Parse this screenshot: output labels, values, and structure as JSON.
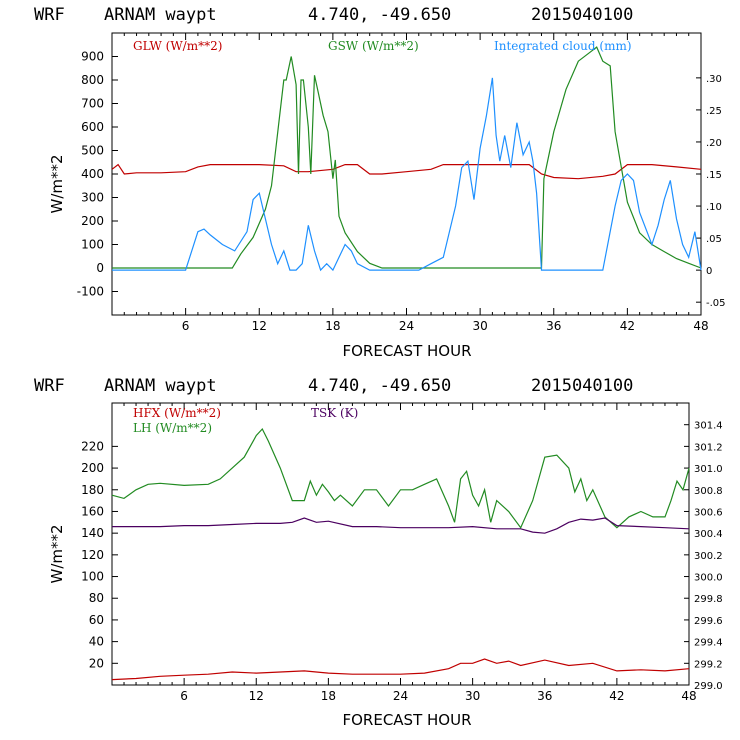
{
  "colors": {
    "glw": "#c00000",
    "gsw": "#228b22",
    "cloud": "#1e90ff",
    "hfx": "#c00000",
    "lh": "#228b22",
    "tsk": "#4b0060"
  },
  "chart_data": [
    {
      "type": "line",
      "header": {
        "model": "WRF",
        "station": "ARNAM waypt",
        "coords": "4.740, -49.650",
        "date": "2015040100"
      },
      "xlabel": "FORECAST HOUR",
      "ylabel": "W/m**2",
      "xlim": [
        0,
        48
      ],
      "ylim": [
        -200,
        1000
      ],
      "x_ticks": [
        "6",
        "12",
        "18",
        "24",
        "30",
        "36",
        "42",
        "48"
      ],
      "y_ticks": [
        "-100",
        "0",
        "100",
        "200",
        "300",
        "400",
        "500",
        "600",
        "700",
        "800",
        "900"
      ],
      "y2lim": [
        -0.07,
        0.37
      ],
      "y2_ticks": [
        "-.05",
        "0",
        ".05",
        ".10",
        ".15",
        ".20",
        ".25",
        ".30"
      ],
      "legend": [
        "GLW (W/m**2)",
        "GSW (W/m**2)",
        "Integrated cloud (mm)"
      ],
      "series": [
        {
          "name": "GLW (W/m**2)",
          "axis": "left",
          "x": [
            0,
            0.5,
            1,
            2,
            4,
            6,
            7,
            8,
            9,
            10,
            12,
            14,
            15,
            16,
            18,
            19,
            20,
            21,
            22,
            24,
            26,
            27,
            28,
            30,
            32,
            34,
            35,
            36,
            38,
            40,
            41,
            42,
            44,
            46,
            48
          ],
          "y": [
            420,
            440,
            400,
            405,
            405,
            410,
            430,
            440,
            440,
            440,
            440,
            435,
            410,
            410,
            420,
            440,
            440,
            400,
            400,
            410,
            420,
            440,
            440,
            440,
            440,
            440,
            400,
            385,
            380,
            390,
            400,
            440,
            440,
            430,
            420
          ]
        },
        {
          "name": "GSW (W/m**2)",
          "axis": "left",
          "x": [
            0,
            9.8,
            10.5,
            11.5,
            12.5,
            13,
            14,
            14.2,
            14.6,
            15,
            15.2,
            15.4,
            15.6,
            16,
            16.2,
            16.5,
            16.8,
            17.2,
            17.6,
            18,
            18.2,
            18.5,
            19,
            20,
            21,
            22,
            34,
            35,
            35.2,
            36,
            37,
            38,
            39,
            39.5,
            40,
            40.6,
            41,
            42,
            43,
            44,
            45,
            46,
            47,
            48
          ],
          "y": [
            0,
            0,
            60,
            130,
            250,
            350,
            800,
            800,
            900,
            780,
            400,
            800,
            800,
            600,
            400,
            820,
            750,
            650,
            580,
            380,
            460,
            220,
            150,
            70,
            20,
            0,
            0,
            0,
            380,
            580,
            760,
            880,
            920,
            940,
            880,
            860,
            580,
            280,
            150,
            100,
            70,
            40,
            20,
            0
          ]
        },
        {
          "name": "Integrated cloud (mm)",
          "axis": "right",
          "x": [
            0,
            6,
            7,
            7.5,
            8,
            9,
            10,
            11,
            11.5,
            12,
            12.5,
            13,
            13.5,
            14,
            14.5,
            15,
            15.5,
            16,
            16.5,
            17,
            17.5,
            18,
            18.5,
            19,
            19.5,
            20,
            21,
            25,
            26,
            27,
            28,
            28.5,
            29,
            29.5,
            30,
            30.5,
            31,
            31.3,
            31.6,
            32,
            32.5,
            33,
            33.5,
            34,
            34.3,
            34.6,
            35,
            40,
            41,
            41.5,
            42,
            42.5,
            43,
            44,
            44.5,
            45,
            45.5,
            46,
            46.5,
            47,
            47.5,
            48
          ],
          "y": [
            0,
            0,
            0.06,
            0.064,
            0.055,
            0.04,
            0.03,
            0.06,
            0.11,
            0.12,
            0.08,
            0.04,
            0.01,
            0.03,
            0.0,
            0.0,
            0.01,
            0.07,
            0.03,
            0.0,
            0.01,
            0.0,
            0.02,
            0.04,
            0.03,
            0.01,
            0.0,
            0.0,
            0.01,
            0.02,
            0.1,
            0.16,
            0.17,
            0.11,
            0.19,
            0.24,
            0.3,
            0.21,
            0.17,
            0.21,
            0.16,
            0.23,
            0.18,
            0.2,
            0.17,
            0.12,
            0.0,
            0.0,
            0.1,
            0.14,
            0.15,
            0.14,
            0.09,
            0.04,
            0.07,
            0.11,
            0.14,
            0.08,
            0.04,
            0.02,
            0.06,
            0.0
          ]
        }
      ]
    },
    {
      "type": "line",
      "header": {
        "model": "WRF",
        "station": "ARNAM waypt",
        "coords": "4.740, -49.650",
        "date": "2015040100"
      },
      "xlabel": "FORECAST HOUR",
      "ylabel": "W/m**2",
      "xlim": [
        0,
        48
      ],
      "ylim": [
        0,
        260
      ],
      "x_ticks": [
        "6",
        "12",
        "18",
        "24",
        "30",
        "36",
        "42",
        "48"
      ],
      "y_ticks": [
        "20",
        "40",
        "60",
        "80",
        "100",
        "120",
        "140",
        "160",
        "180",
        "200",
        "220"
      ],
      "y2lim": [
        299.0,
        301.6
      ],
      "y2_ticks": [
        "299.0",
        "299.2",
        "299.4",
        "299.6",
        "299.8",
        "300.0",
        "300.2",
        "300.4",
        "300.6",
        "300.8",
        "301.0",
        "301.2",
        "301.4"
      ],
      "legend": [
        "HFX (W/m**2)",
        "LH  (W/m**2)",
        "TSK (K)"
      ],
      "series": [
        {
          "name": "HFX (W/m**2)",
          "axis": "left",
          "x": [
            0,
            2,
            4,
            6,
            8,
            10,
            12,
            14,
            16,
            18,
            20,
            22,
            24,
            26,
            28,
            29,
            30,
            31,
            32,
            33,
            34,
            36,
            38,
            40,
            42,
            44,
            46,
            48
          ],
          "y": [
            5,
            6,
            8,
            9,
            10,
            12,
            11,
            12,
            13,
            11,
            10,
            10,
            10,
            11,
            15,
            20,
            20,
            24,
            20,
            22,
            18,
            23,
            18,
            20,
            13,
            14,
            13,
            15
          ]
        },
        {
          "name": "LH  (W/m**2)",
          "axis": "left",
          "x": [
            0,
            1,
            2,
            3,
            4,
            6,
            8,
            9,
            10,
            11,
            12,
            12.5,
            13,
            14,
            15,
            16,
            16.5,
            17,
            17.5,
            18,
            18.5,
            19,
            20,
            21,
            22,
            23,
            24,
            25,
            26,
            27,
            28,
            28.5,
            29,
            29.5,
            30,
            30.5,
            31,
            31.5,
            32,
            33,
            34,
            35,
            36,
            37,
            38,
            38.5,
            39,
            39.5,
            40,
            41,
            42,
            43,
            44,
            45,
            46,
            46.5,
            47,
            47.5,
            48
          ],
          "y": [
            175,
            172,
            180,
            185,
            186,
            184,
            185,
            190,
            200,
            210,
            230,
            236,
            225,
            200,
            170,
            170,
            188,
            175,
            185,
            178,
            170,
            175,
            165,
            180,
            180,
            165,
            180,
            180,
            185,
            190,
            165,
            150,
            190,
            197,
            175,
            165,
            180,
            150,
            170,
            160,
            145,
            170,
            210,
            212,
            200,
            178,
            190,
            170,
            180,
            155,
            145,
            155,
            160,
            155,
            155,
            170,
            188,
            180,
            200
          ]
        },
        {
          "name": "TSK (K)",
          "axis": "right",
          "x": [
            0,
            2,
            4,
            6,
            8,
            10,
            12,
            14,
            15,
            16,
            17,
            18,
            20,
            22,
            24,
            26,
            28,
            30,
            32,
            34,
            35,
            36,
            37,
            38,
            39,
            40,
            41,
            42,
            44,
            46,
            48
          ],
          "y": [
            300.46,
            300.46,
            300.46,
            300.47,
            300.47,
            300.48,
            300.49,
            300.49,
            300.5,
            300.54,
            300.5,
            300.51,
            300.46,
            300.46,
            300.45,
            300.45,
            300.45,
            300.46,
            300.44,
            300.44,
            300.41,
            300.4,
            300.44,
            300.5,
            300.53,
            300.52,
            300.54,
            300.47,
            300.46,
            300.45,
            300.44
          ]
        }
      ]
    }
  ]
}
